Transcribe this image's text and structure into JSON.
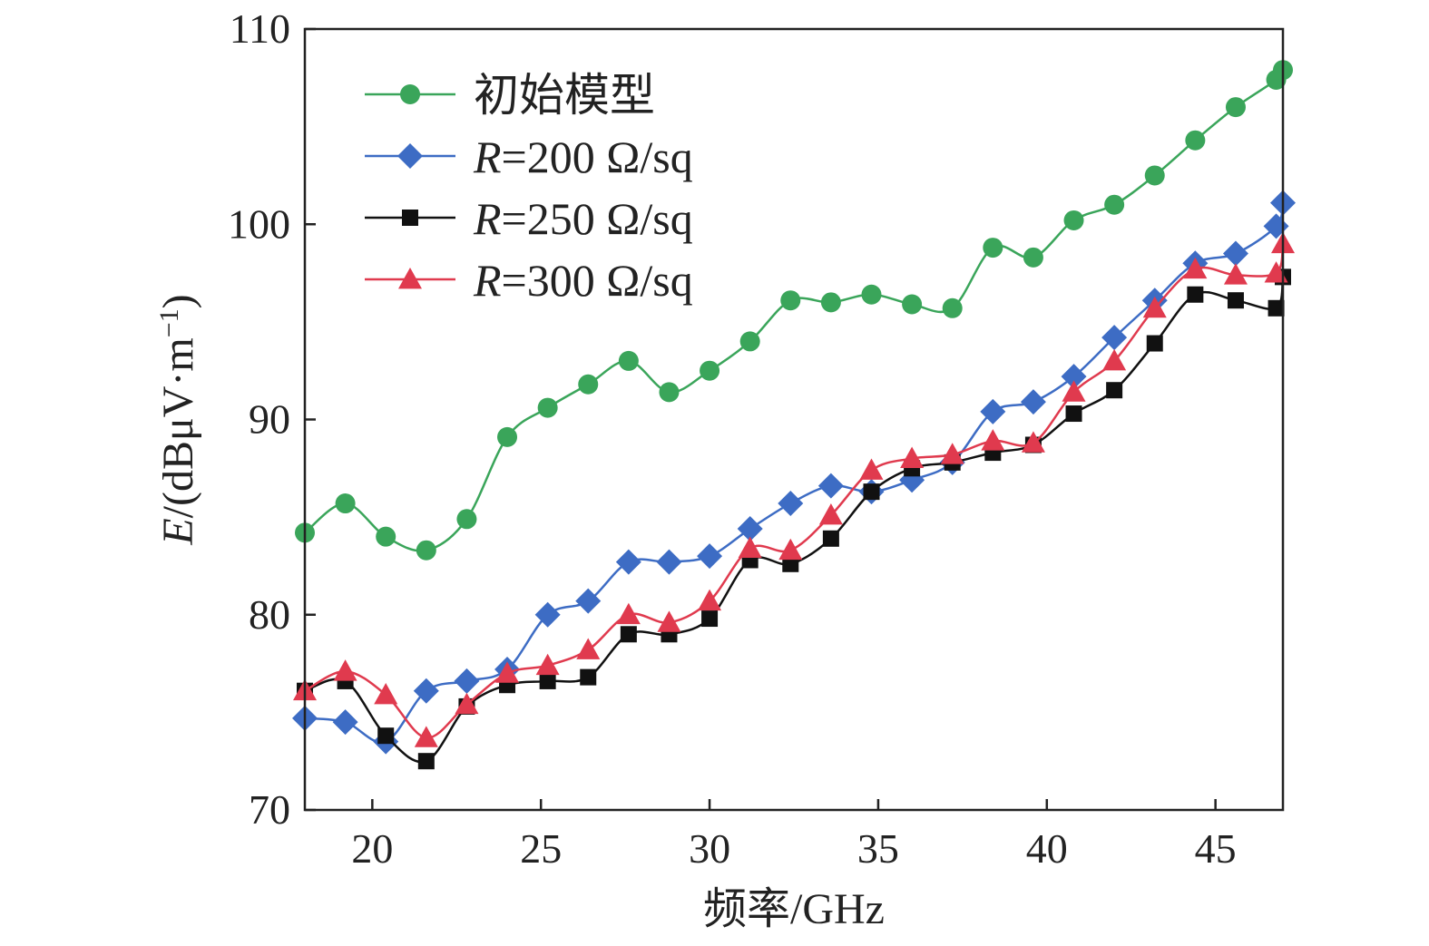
{
  "chart_data": {
    "type": "line",
    "xlabel": "频率/GHz",
    "ylabel": {
      "var": "E",
      "unit_prefix": "/(dBμV·m",
      "unit_exp": "−1",
      "unit_suffix": ")"
    },
    "xlim": [
      18,
      47
    ],
    "ylim": [
      70,
      110
    ],
    "xticks": [
      20,
      25,
      30,
      35,
      40,
      45
    ],
    "yticks": [
      70,
      80,
      90,
      100,
      110
    ],
    "grid": false,
    "legend_position": "top-left",
    "x": [
      18,
      19.2,
      20.4,
      21.6,
      22.8,
      24,
      25.2,
      26.4,
      27.6,
      28.8,
      30,
      31.2,
      32.4,
      33.6,
      34.8,
      36,
      37.2,
      38.4,
      39.6,
      40.8,
      42,
      43.2,
      44.4,
      45.6,
      46.8,
      47.5
    ],
    "series": [
      {
        "name": "初始模型",
        "name_parts": {
          "italic": "",
          "rest": "初始模型"
        },
        "color": "#3aa55a",
        "marker": "circle",
        "values": [
          84.2,
          85.7,
          84.0,
          83.3,
          84.9,
          89.1,
          90.6,
          91.8,
          93.0,
          91.4,
          92.5,
          94.0,
          96.1,
          96.0,
          96.4,
          95.9,
          95.7,
          98.8,
          98.3,
          100.2,
          101.0,
          102.5,
          104.3,
          106.0,
          107.4,
          107.9
        ]
      },
      {
        "name": "R=200 Ω/sq",
        "name_parts": {
          "italic": "R",
          "rest": "=200 Ω/sq"
        },
        "color": "#3d6cc4",
        "marker": "diamond",
        "values": [
          74.7,
          74.5,
          73.5,
          76.1,
          76.6,
          77.2,
          80.0,
          80.7,
          82.7,
          82.7,
          83.0,
          84.4,
          85.7,
          86.6,
          86.3,
          86.9,
          87.8,
          90.4,
          90.9,
          92.2,
          94.2,
          96.1,
          98.0,
          98.5,
          99.9,
          101.1
        ]
      },
      {
        "name": "R=250 Ω/sq",
        "name_parts": {
          "italic": "R",
          "rest": "=250 Ω/sq"
        },
        "color": "#111111",
        "marker": "square",
        "values": [
          76.1,
          76.6,
          73.8,
          72.5,
          75.3,
          76.4,
          76.6,
          76.8,
          79.0,
          79.0,
          79.8,
          82.8,
          82.6,
          83.9,
          86.3,
          87.5,
          87.8,
          88.3,
          88.7,
          90.3,
          91.5,
          93.9,
          96.4,
          96.1,
          95.7,
          97.3
        ]
      },
      {
        "name": "R=300 Ω/sq",
        "name_parts": {
          "italic": "R",
          "rest": "=300 Ω/sq"
        },
        "color": "#e03a4e",
        "marker": "triangle",
        "values": [
          76.1,
          77.1,
          75.9,
          73.7,
          75.4,
          77.0,
          77.4,
          78.2,
          80.0,
          79.6,
          80.7,
          83.4,
          83.3,
          85.1,
          87.4,
          88.0,
          88.2,
          88.9,
          88.8,
          91.4,
          93.0,
          95.7,
          97.7,
          97.4,
          97.5,
          99.0
        ]
      }
    ]
  }
}
